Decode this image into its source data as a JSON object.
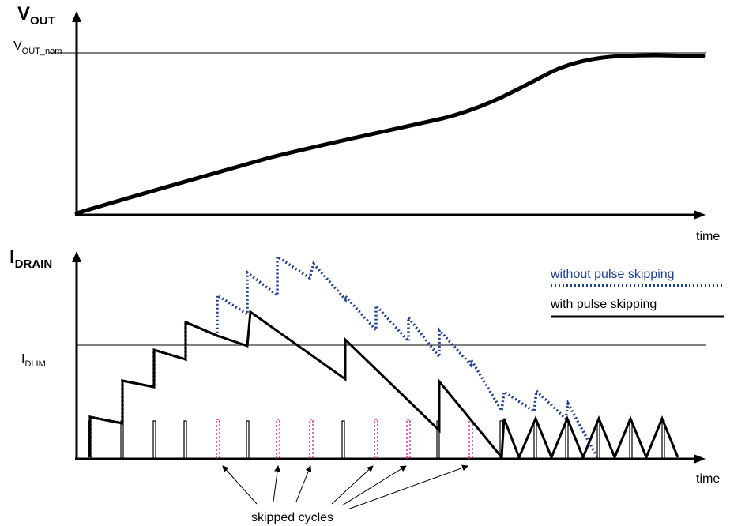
{
  "top_plot": {
    "y_axis_label_main": "V",
    "y_axis_label_sub": "OUT",
    "reference_label_main": "V",
    "reference_label_sub": "OUT_nom",
    "x_axis_label": "time"
  },
  "bottom_plot": {
    "y_axis_label_main": "I",
    "y_axis_label_sub": "DRAIN",
    "reference_label_main": "I",
    "reference_label_sub": "DLIM",
    "x_axis_label": "time",
    "legend": {
      "without": {
        "label": "without pulse skipping",
        "color": "#1f3f8f"
      },
      "with": {
        "label": "with pulse skipping",
        "color": "#000000"
      }
    },
    "skipped_marker_color": "#e0128c",
    "annotation": "skipped cycles"
  }
}
